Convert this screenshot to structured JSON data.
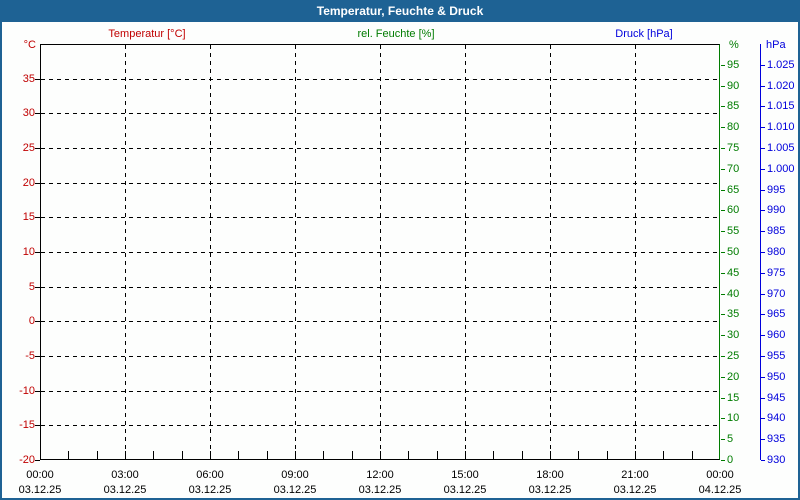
{
  "window": {
    "title": "Temperatur, Feuchte & Druck"
  },
  "legend": {
    "temperature": "Temperatur [°C]",
    "humidity": "rel. Feuchte [%]",
    "pressure": "Druck [hPa]"
  },
  "colors": {
    "titlebar": "#1E6294",
    "frame_border": "#1E6294",
    "temperature": "#C00000",
    "humidity": "#007C00",
    "pressure": "#0000DC",
    "grid": "#000000",
    "background": "#FDFEFD"
  },
  "chart_data": {
    "type": "line",
    "title": "Temperatur, Feuchte & Druck",
    "grid": true,
    "series": [
      {
        "name": "Temperatur [°C]",
        "axis": "temperature",
        "points": []
      },
      {
        "name": "rel. Feuchte [%]",
        "axis": "humidity",
        "points": []
      },
      {
        "name": "Druck [hPa]",
        "axis": "pressure",
        "points": []
      }
    ],
    "x_axis": {
      "range_hours": [
        0,
        24
      ],
      "major_tick_hours": 3,
      "minor_tick_hours": 1,
      "ticks": [
        {
          "time": "00:00",
          "date": "03.12.25"
        },
        {
          "time": "03:00",
          "date": "03.12.25"
        },
        {
          "time": "06:00",
          "date": "03.12.25"
        },
        {
          "time": "09:00",
          "date": "03.12.25"
        },
        {
          "time": "12:00",
          "date": "03.12.25"
        },
        {
          "time": "15:00",
          "date": "03.12.25"
        },
        {
          "time": "18:00",
          "date": "03.12.25"
        },
        {
          "time": "21:00",
          "date": "03.12.25"
        },
        {
          "time": "00:00",
          "date": "04.12.25"
        }
      ]
    },
    "y_axes": {
      "temperature": {
        "unit": "°C",
        "side": "left",
        "min": -20,
        "max": 40,
        "step": 5,
        "tick_labels": [
          "-20",
          "-15",
          "-10",
          "-5",
          "0",
          "5",
          "10",
          "15",
          "20",
          "25",
          "30",
          "35"
        ]
      },
      "humidity": {
        "unit": "%",
        "side": "right",
        "min": 0,
        "max": 100,
        "step": 5,
        "tick_labels": [
          "0",
          "5",
          "10",
          "15",
          "20",
          "25",
          "30",
          "35",
          "40",
          "45",
          "50",
          "55",
          "60",
          "65",
          "70",
          "75",
          "80",
          "85",
          "90",
          "95"
        ]
      },
      "pressure": {
        "unit": "hPa",
        "side": "far-right",
        "min": 930,
        "max": 1030,
        "step": 5,
        "tick_labels": [
          "930",
          "935",
          "940",
          "945",
          "950",
          "955",
          "960",
          "965",
          "970",
          "975",
          "980",
          "985",
          "990",
          "995",
          "1.000",
          "1.005",
          "1.010",
          "1.015",
          "1.020",
          "1.025"
        ]
      }
    }
  }
}
